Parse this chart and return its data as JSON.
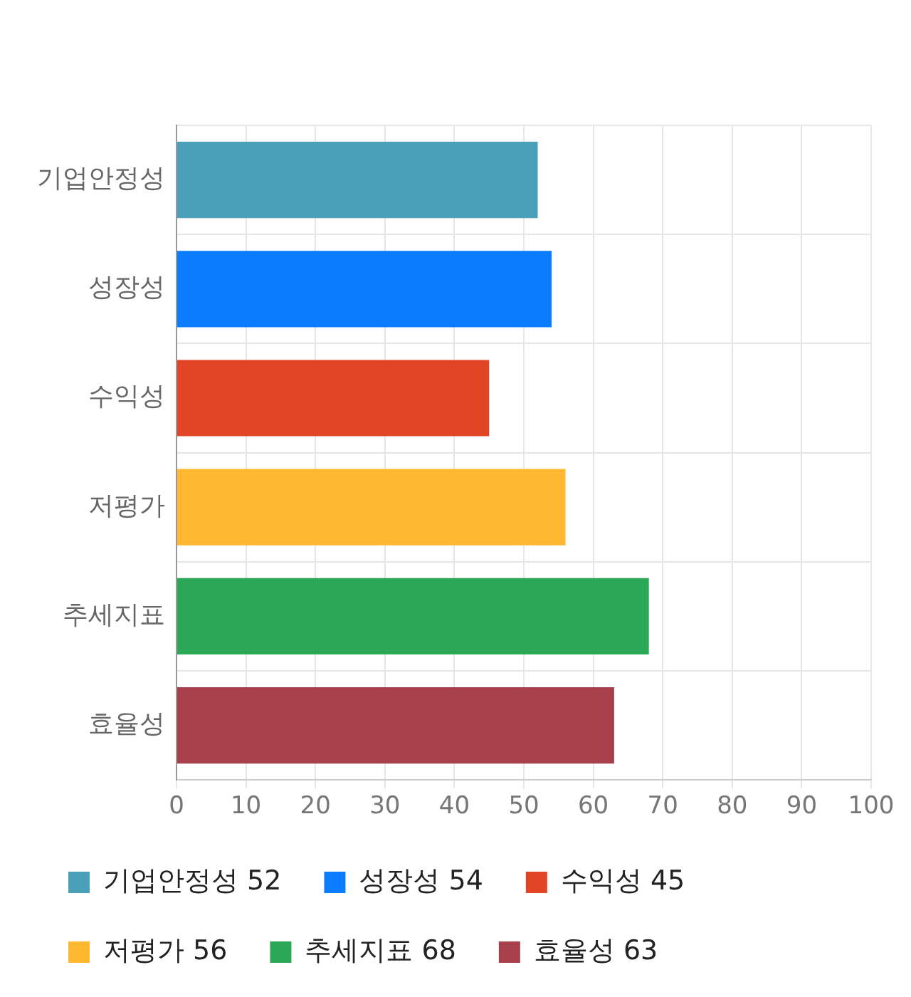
{
  "chart_data": {
    "type": "bar",
    "orientation": "horizontal",
    "stacked": true,
    "categories": [
      "기업안정성",
      "성장성",
      "수익성",
      "저평가",
      "추세지표",
      "효율성"
    ],
    "series": [
      {
        "name": "기업안정성 52",
        "color": "#4aa0b8",
        "values": [
          52,
          null,
          null,
          null,
          null,
          null
        ]
      },
      {
        "name": "성장성 54",
        "color": "#0a7cff",
        "values": [
          null,
          54,
          null,
          null,
          null,
          null
        ]
      },
      {
        "name": "수익성 45",
        "color": "#e24426",
        "values": [
          null,
          null,
          45,
          null,
          null,
          null
        ]
      },
      {
        "name": "저평가 56",
        "color": "#ffb830",
        "values": [
          null,
          null,
          null,
          56,
          null,
          null
        ]
      },
      {
        "name": "추세지표 68",
        "color": "#2aa855",
        "values": [
          null,
          null,
          null,
          null,
          68,
          null
        ]
      },
      {
        "name": "효율성 63",
        "color": "#a8404c",
        "values": [
          null,
          null,
          null,
          null,
          null,
          63
        ]
      }
    ],
    "xlim": [
      0,
      100
    ],
    "xticks": [
      0,
      10,
      20,
      30,
      40,
      50,
      60,
      70,
      80,
      90,
      100
    ],
    "grid": true,
    "legend": "bottom"
  }
}
